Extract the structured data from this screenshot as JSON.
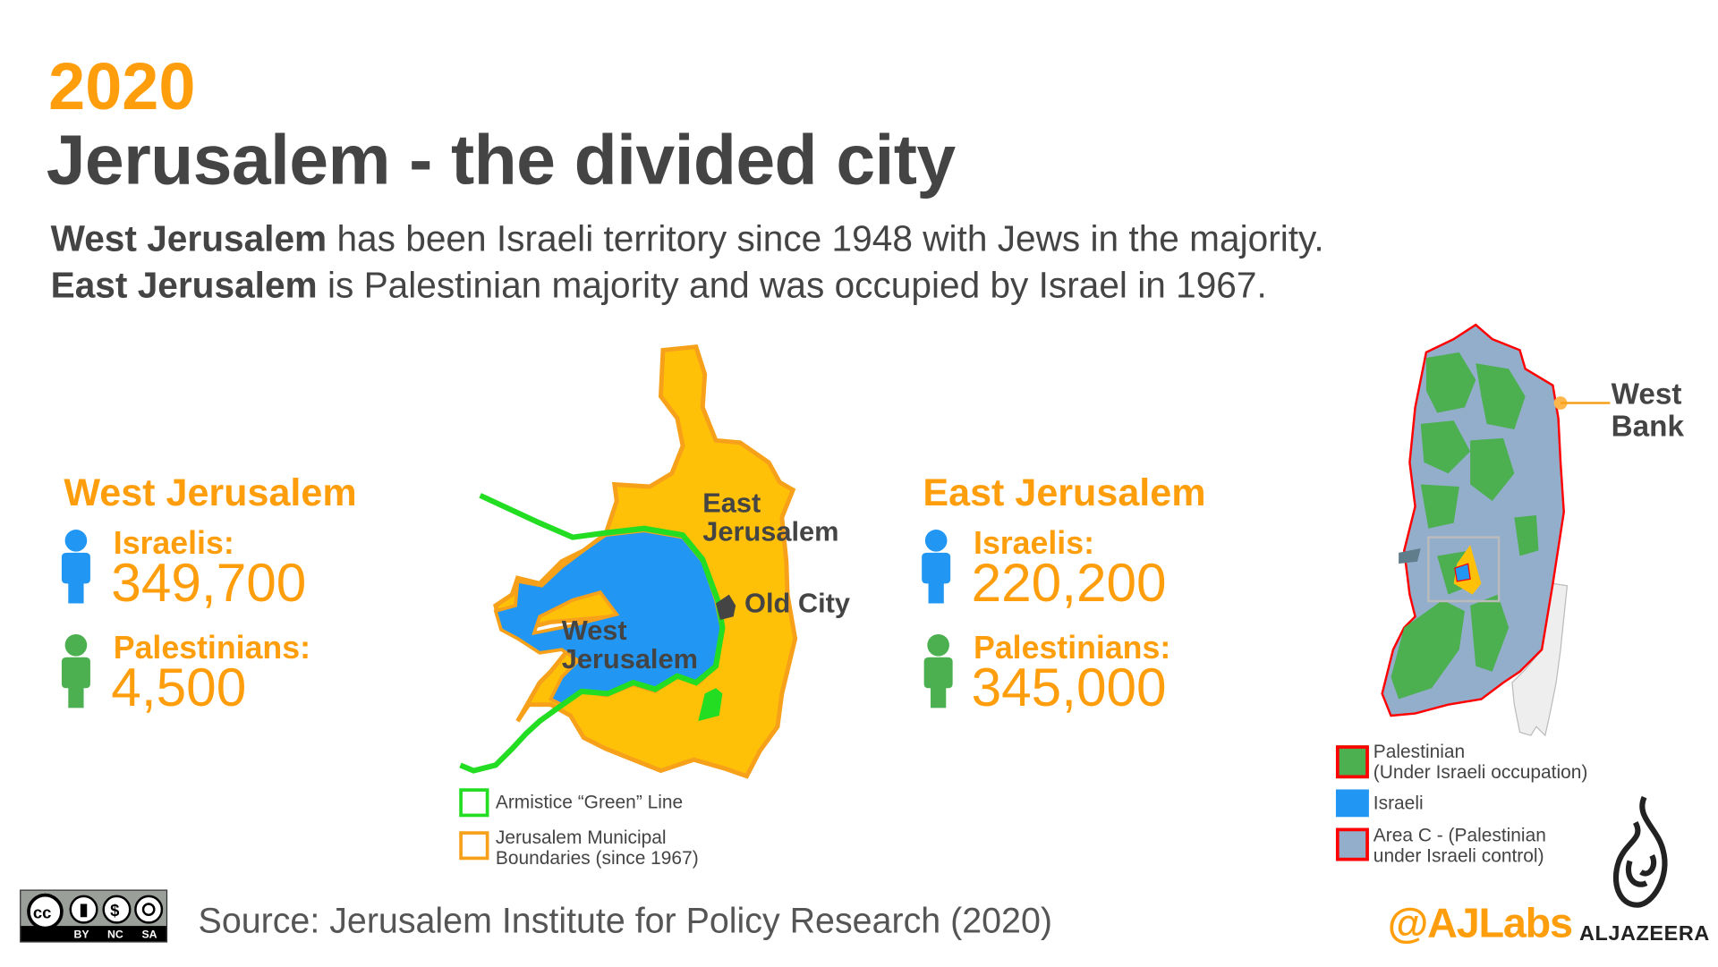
{
  "header": {
    "year": "2020",
    "title": "Jerusalem - the divided city",
    "intro": [
      {
        "bold": "West Jerusalem",
        "rest": " has been Israeli territory since 1948 with Jews in the majority."
      },
      {
        "bold": "East Jerusalem",
        "rest": " is Palestinian majority and was occupied by Israel in 1967."
      }
    ]
  },
  "west": {
    "heading": "West Jerusalem",
    "israelis_label": "Israelis:",
    "israelis_value": "349,700",
    "palestinians_label": "Palestinians:",
    "palestinians_value": "4,500"
  },
  "east": {
    "heading": "East Jerusalem",
    "israelis_label": "Israelis:",
    "israelis_value": "220,200",
    "palestinians_label": "Palestinians:",
    "palestinians_value": "345,000"
  },
  "jerusalem_map": {
    "labels": {
      "east": [
        "East",
        "Jerusalem"
      ],
      "west": [
        "West",
        "Jerusalem"
      ],
      "old_city": "Old City"
    },
    "legend": [
      {
        "label": "Armistice “Green” Line",
        "color": "#22dd22"
      },
      {
        "label": "Jerusalem Municipal",
        "label2": "Boundaries (since 1967)",
        "color": "#f7a01a"
      }
    ],
    "colors": {
      "west": "#2196F3",
      "east": "#FFC107",
      "boundary": "#f7a01a",
      "green_line": "#22dd22",
      "old_city": "#444444"
    }
  },
  "west_bank_map": {
    "label": [
      "West",
      "Bank"
    ],
    "legend": [
      {
        "label": "Palestinian",
        "label2": "(Under Israeli occupation)",
        "color": "#4CAF50",
        "border": "#ff0000"
      },
      {
        "label": "Israeli",
        "color": "#2196F3"
      },
      {
        "label": "Area C - (Palestinian",
        "label2": "under Israeli control)",
        "color": "#93AECB",
        "border": "#ff0000"
      }
    ]
  },
  "footer": {
    "license": [
      "BY",
      "NC",
      "SA"
    ],
    "source": "Source: Jerusalem Institute for Policy Research (2020)",
    "handle": "@AJLabs",
    "brand": "ALJAZEERA"
  },
  "colors": {
    "accent": "#FF9E0C",
    "text": "#444444",
    "israeli_icon": "#2196F3",
    "palestinian_icon": "#4CAF50"
  }
}
